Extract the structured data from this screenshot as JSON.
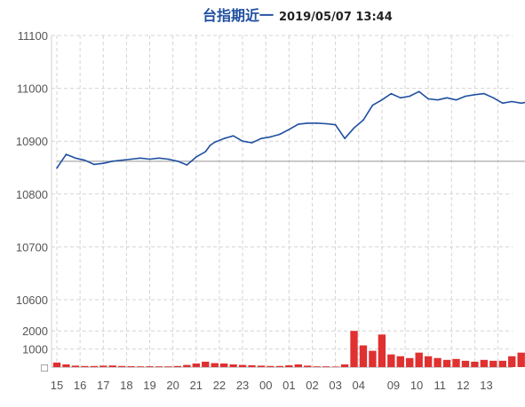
{
  "title": "台指期近一",
  "subtitle": "2019/05/07 13:44",
  "chart_data": [
    {
      "type": "line",
      "name": "price",
      "ylim": [
        10600,
        11100
      ],
      "yticks": [
        10600,
        10700,
        10800,
        10900,
        11000,
        11100
      ],
      "ytick_labels": [
        "10600",
        "10700",
        "10800",
        "10900",
        "11000",
        "11100"
      ],
      "reference_line": 10862,
      "grid": true,
      "x": [
        0,
        0.4,
        0.8,
        1.2,
        1.6,
        2.0,
        2.4,
        2.8,
        3.2,
        3.6,
        4.0,
        4.4,
        4.8,
        5.2,
        5.6,
        6.0,
        6.4,
        6.6,
        6.8,
        7.2,
        7.6,
        8.0,
        8.4,
        8.8,
        9.2,
        9.6,
        10.0,
        10.4,
        10.8,
        11.2,
        11.6,
        12.0,
        12.4,
        12.8,
        13.2,
        13.6,
        14.0,
        14.4,
        14.8,
        15.2,
        15.6,
        16.0,
        16.4,
        16.8,
        17.2,
        17.6,
        18.0,
        18.4,
        18.8,
        19.2,
        19.6,
        20.0,
        20.4
      ],
      "values": [
        10849,
        10875,
        10868,
        10864,
        10856,
        10858,
        10862,
        10864,
        10866,
        10868,
        10866,
        10868,
        10866,
        10862,
        10855,
        10870,
        10880,
        10892,
        10898,
        10905,
        10910,
        10900,
        10897,
        10905,
        10908,
        10913,
        10922,
        10932,
        10934,
        10934,
        10933,
        10931,
        10905,
        10925,
        10940,
        10968,
        10978,
        10990,
        10982,
        10985,
        10994,
        10980,
        10978,
        10982,
        10978,
        10985,
        10988,
        10990,
        10982,
        10972,
        10975,
        10972,
        10975
      ]
    },
    {
      "type": "bar",
      "name": "volume",
      "ylim": [
        0,
        2500
      ],
      "yticks": [
        0,
        1000,
        2000
      ],
      "ytick_labels": [
        "□",
        "1000",
        "2000"
      ],
      "x": [
        0,
        0.4,
        0.8,
        1.2,
        1.6,
        2.0,
        2.4,
        2.8,
        3.2,
        3.6,
        4.0,
        4.4,
        4.8,
        5.2,
        5.6,
        6.0,
        6.4,
        6.8,
        7.2,
        7.6,
        8.0,
        8.4,
        8.8,
        9.2,
        9.6,
        10.0,
        10.4,
        10.8,
        11.2,
        11.6,
        12.0,
        12.4,
        12.8,
        13.2,
        13.6,
        14.0,
        14.4,
        14.8,
        15.2,
        15.6,
        16.0,
        16.4,
        16.8,
        17.2,
        17.6,
        18.0,
        18.4,
        18.8,
        19.2,
        19.6,
        20.0
      ],
      "values": [
        250,
        150,
        80,
        60,
        60,
        80,
        90,
        60,
        50,
        40,
        45,
        40,
        40,
        60,
        120,
        200,
        300,
        220,
        200,
        150,
        120,
        100,
        80,
        60,
        60,
        100,
        150,
        80,
        40,
        40,
        30,
        150,
        2000,
        1200,
        900,
        1800,
        700,
        600,
        500,
        800,
        600,
        500,
        400,
        450,
        350,
        300,
        400,
        350,
        350,
        600,
        800
      ]
    }
  ],
  "x_axis": {
    "ticks": [
      0,
      1,
      2,
      3,
      4,
      5,
      6,
      7,
      8,
      9,
      10,
      11,
      12,
      13,
      14,
      15,
      16,
      17,
      18,
      19
    ],
    "labels": [
      "15",
      "16",
      "17",
      "18",
      "19",
      "20",
      "21",
      "22",
      "23",
      "00",
      "01",
      "02",
      "03",
      "04",
      "09",
      "10",
      "11",
      "12",
      "13"
    ],
    "label_positions": [
      0,
      1,
      2,
      3,
      4,
      5,
      6,
      7,
      8,
      9,
      10,
      11,
      12,
      13,
      14.5,
      15.5,
      16.5,
      17.5,
      18.5
    ]
  },
  "colors": {
    "line": "#1f4fa0",
    "volume": "#e03030",
    "reference": "#a9a9a9",
    "grid": "#d4d4d4"
  }
}
